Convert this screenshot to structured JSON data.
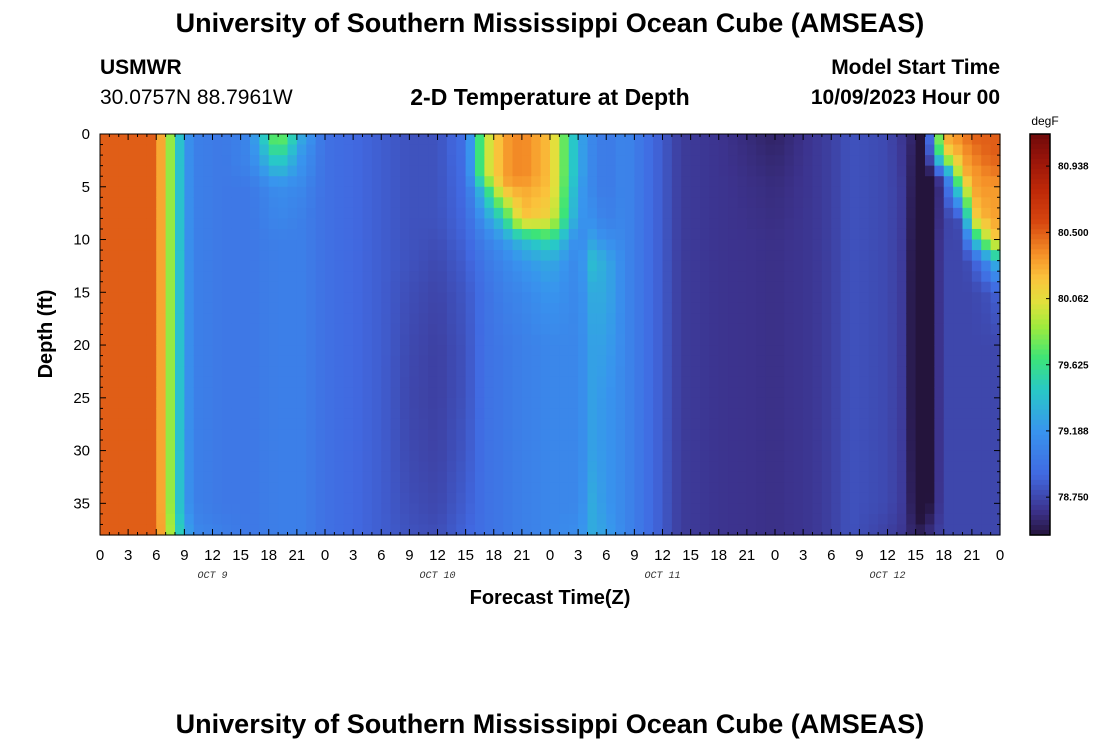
{
  "header": {
    "title_top": "University of Southern Mississippi Ocean Cube (AMSEAS)",
    "station_id": "USMWR",
    "station_coords": "30.0757N  88.7961W",
    "model_start_label": "Model Start Time",
    "model_start_value": "10/09/2023 Hour 00",
    "title_bottom": "University of Southern Mississippi Ocean Cube (AMSEAS)"
  },
  "chart_data": {
    "type": "heatmap",
    "title": "2-D Temperature at Depth",
    "xlabel": "Forecast Time(Z)",
    "ylabel": "Depth (ft)",
    "colorbar_unit": "degF",
    "x_tick_labels": [
      "0",
      "3",
      "6",
      "9",
      "12",
      "15",
      "18",
      "21",
      "0",
      "3",
      "6",
      "9",
      "12",
      "15",
      "18",
      "21",
      "0",
      "3",
      "6",
      "9",
      "12",
      "15",
      "18",
      "21",
      "0",
      "3",
      "6",
      "9",
      "12",
      "15",
      "18",
      "21",
      "0"
    ],
    "x_range_hours": [
      0,
      96
    ],
    "date_labels": [
      {
        "label": "OCT 9",
        "hour": 12
      },
      {
        "label": "OCT 10",
        "hour": 36
      },
      {
        "label": "OCT 11",
        "hour": 60
      },
      {
        "label": "OCT 12",
        "hour": 84
      }
    ],
    "y_ticks": [
      0,
      5,
      10,
      15,
      20,
      25,
      30,
      35
    ],
    "y_range": [
      0,
      38
    ],
    "y_inverted": true,
    "color_range": [
      78.5,
      81.15
    ],
    "colorbar_ticks": [
      80.938,
      80.5,
      80.062,
      79.625,
      79.188,
      78.75
    ],
    "grid_hours": [
      0,
      6,
      9,
      10.5,
      13,
      16,
      19,
      21.5,
      24,
      27,
      30,
      33,
      36,
      39,
      41,
      43,
      45,
      48,
      51,
      52.5,
      54,
      56,
      59,
      62,
      66,
      72,
      76,
      78,
      80,
      84,
      86,
      87,
      88,
      90,
      92,
      93,
      95,
      96
    ],
    "grid_depths": [
      0,
      2,
      4,
      5,
      8,
      10,
      12,
      15,
      20,
      25,
      30,
      35,
      38
    ],
    "temperature_grid": [
      [
        80.5,
        80.5,
        80.5,
        80.5,
        80.5,
        80.5,
        80.5,
        80.5,
        80.5,
        80.5,
        80.5,
        80.5,
        80.5
      ],
      [
        80.5,
        80.5,
        80.5,
        80.5,
        80.5,
        80.5,
        80.5,
        80.5,
        80.5,
        80.5,
        80.5,
        80.5,
        80.5
      ],
      [
        79.2,
        79.2,
        79.2,
        79.2,
        79.2,
        79.2,
        79.2,
        79.2,
        79.2,
        79.2,
        79.2,
        79.2,
        79.3
      ],
      [
        79.05,
        79.05,
        79.05,
        79.05,
        79.05,
        79.05,
        79.05,
        79.05,
        79.05,
        79.05,
        79.05,
        79.05,
        79.1
      ],
      [
        79.0,
        79.0,
        79.0,
        79.0,
        79.0,
        79.0,
        79.0,
        79.0,
        79.0,
        79.0,
        79.0,
        79.0,
        79.05
      ],
      [
        79.1,
        79.1,
        79.05,
        79.0,
        79.0,
        79.0,
        79.0,
        79.0,
        79.0,
        79.0,
        79.0,
        79.0,
        79.0
      ],
      [
        79.9,
        79.6,
        79.3,
        79.15,
        79.1,
        79.05,
        79.05,
        79.05,
        79.05,
        79.05,
        79.05,
        79.05,
        79.05
      ],
      [
        79.3,
        79.2,
        79.15,
        79.1,
        79.05,
        79.05,
        79.05,
        79.05,
        79.05,
        79.05,
        79.05,
        79.05,
        79.05
      ],
      [
        78.95,
        78.95,
        78.95,
        78.95,
        78.95,
        78.95,
        78.95,
        78.95,
        78.95,
        78.95,
        78.95,
        78.95,
        78.95
      ],
      [
        78.9,
        78.9,
        78.9,
        78.9,
        78.9,
        78.9,
        78.9,
        78.9,
        78.9,
        78.9,
        78.9,
        78.9,
        78.9
      ],
      [
        78.85,
        78.85,
        78.85,
        78.85,
        78.85,
        78.85,
        78.85,
        78.85,
        78.85,
        78.85,
        78.85,
        78.85,
        78.85
      ],
      [
        78.8,
        78.8,
        78.8,
        78.8,
        78.8,
        78.8,
        78.8,
        78.78,
        78.76,
        78.75,
        78.76,
        78.78,
        78.8
      ],
      [
        78.8,
        78.8,
        78.8,
        78.8,
        78.8,
        78.78,
        78.76,
        78.74,
        78.72,
        78.72,
        78.73,
        78.75,
        78.78
      ],
      [
        78.95,
        78.95,
        78.93,
        78.92,
        78.9,
        78.88,
        78.85,
        78.82,
        78.8,
        78.8,
        78.82,
        78.85,
        78.88
      ],
      [
        79.9,
        79.9,
        79.9,
        79.5,
        79.2,
        79.05,
        79.0,
        78.95,
        78.95,
        78.95,
        78.95,
        78.95,
        78.95
      ],
      [
        80.3,
        80.3,
        80.3,
        80.25,
        79.5,
        79.2,
        79.1,
        79.05,
        79.0,
        79.0,
        79.0,
        79.0,
        79.0
      ],
      [
        80.4,
        80.4,
        80.4,
        80.3,
        80.2,
        79.4,
        79.2,
        79.1,
        79.05,
        79.05,
        79.05,
        79.05,
        79.05
      ],
      [
        80.2,
        80.2,
        80.2,
        80.2,
        80.1,
        79.6,
        79.3,
        79.2,
        79.1,
        79.1,
        79.1,
        79.1,
        79.1
      ],
      [
        79.3,
        79.3,
        79.3,
        79.25,
        79.2,
        79.1,
        79.1,
        79.1,
        79.1,
        79.1,
        79.1,
        79.1,
        79.15
      ],
      [
        79.1,
        79.1,
        79.1,
        79.1,
        79.15,
        79.25,
        79.4,
        79.3,
        79.25,
        79.25,
        79.25,
        79.3,
        79.3
      ],
      [
        79.0,
        79.0,
        79.0,
        79.0,
        79.05,
        79.15,
        79.3,
        79.3,
        79.25,
        79.2,
        79.2,
        79.2,
        79.25
      ],
      [
        79.1,
        79.1,
        79.1,
        79.1,
        79.1,
        79.1,
        79.1,
        79.1,
        79.1,
        79.1,
        79.1,
        79.1,
        79.1
      ],
      [
        78.9,
        78.9,
        78.9,
        78.9,
        78.9,
        78.9,
        78.9,
        78.9,
        78.9,
        78.9,
        78.9,
        78.9,
        78.9
      ],
      [
        78.7,
        78.7,
        78.7,
        78.7,
        78.7,
        78.7,
        78.7,
        78.7,
        78.7,
        78.7,
        78.7,
        78.7,
        78.7
      ],
      [
        78.67,
        78.67,
        78.67,
        78.67,
        78.67,
        78.67,
        78.67,
        78.67,
        78.67,
        78.67,
        78.67,
        78.67,
        78.67
      ],
      [
        78.58,
        78.6,
        78.62,
        78.63,
        78.64,
        78.65,
        78.65,
        78.65,
        78.65,
        78.65,
        78.65,
        78.65,
        78.65
      ],
      [
        78.68,
        78.68,
        78.68,
        78.68,
        78.68,
        78.68,
        78.68,
        78.68,
        78.68,
        78.68,
        78.68,
        78.68,
        78.68
      ],
      [
        78.72,
        78.72,
        78.72,
        78.72,
        78.72,
        78.72,
        78.72,
        78.72,
        78.72,
        78.72,
        78.72,
        78.72,
        78.72
      ],
      [
        78.8,
        78.8,
        78.8,
        78.8,
        78.8,
        78.8,
        78.8,
        78.8,
        78.8,
        78.8,
        78.8,
        78.8,
        78.8
      ],
      [
        78.76,
        78.76,
        78.76,
        78.76,
        78.76,
        78.76,
        78.76,
        78.76,
        78.76,
        78.76,
        78.76,
        78.76,
        78.72
      ],
      [
        78.65,
        78.66,
        78.67,
        78.68,
        78.68,
        78.68,
        78.68,
        78.68,
        78.68,
        78.68,
        78.68,
        78.68,
        78.66
      ],
      [
        78.55,
        78.5,
        78.47,
        78.45,
        78.43,
        78.42,
        78.41,
        78.4,
        78.4,
        78.4,
        78.42,
        78.45,
        78.55
      ],
      [
        78.45,
        78.42,
        78.4,
        78.4,
        78.4,
        78.4,
        78.4,
        78.4,
        78.4,
        78.4,
        78.4,
        78.42,
        78.6
      ],
      [
        80.3,
        80.0,
        78.8,
        78.7,
        78.72,
        78.74,
        78.75,
        78.75,
        78.75,
        78.75,
        78.75,
        78.75,
        78.75
      ],
      [
        80.4,
        80.3,
        80.2,
        79.8,
        78.8,
        78.75,
        78.75,
        78.75,
        78.75,
        78.75,
        78.75,
        78.75,
        78.75
      ],
      [
        80.5,
        80.4,
        80.3,
        80.3,
        80.1,
        79.3,
        78.8,
        78.75,
        78.75,
        78.75,
        78.75,
        78.75,
        78.75
      ],
      [
        80.5,
        80.5,
        80.4,
        80.35,
        80.3,
        80.1,
        79.2,
        78.8,
        78.75,
        78.75,
        78.75,
        78.75,
        78.75
      ],
      [
        80.5,
        80.5,
        80.4,
        80.3,
        80.3,
        80.2,
        79.5,
        78.9,
        78.75,
        78.75,
        78.75,
        78.75,
        78.75
      ]
    ]
  }
}
